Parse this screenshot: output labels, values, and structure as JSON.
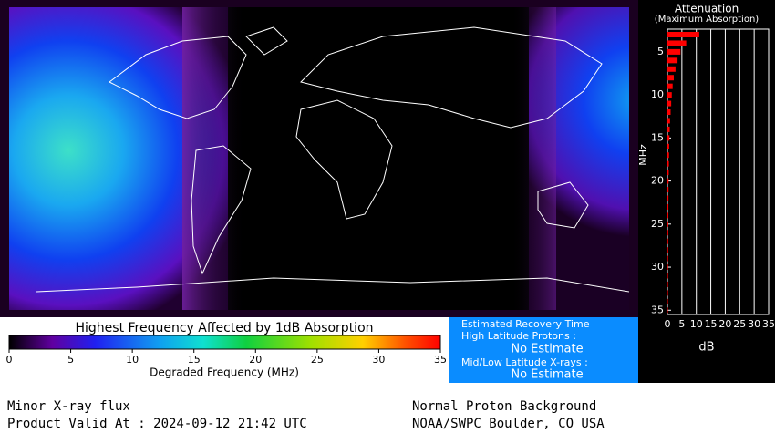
{
  "chart_data": {
    "type": "bar",
    "orientation": "horizontal",
    "title": "Attenuation",
    "subtitle": "(Maximum Absorption)",
    "y_label": "MHz",
    "x_label": "dB",
    "y": [
      3,
      4,
      5,
      6,
      7,
      8,
      9,
      10,
      11,
      12,
      13,
      14,
      15,
      16,
      17,
      18,
      19,
      20,
      21,
      22,
      23,
      24,
      25,
      26,
      27,
      28,
      29,
      30,
      31,
      32,
      33,
      34,
      35
    ],
    "values": [
      11,
      6.5,
      4.5,
      3.5,
      2.8,
      2.2,
      1.8,
      1.5,
      1.3,
      1.1,
      0.9,
      0.8,
      0.7,
      0.6,
      0.55,
      0.5,
      0.45,
      0.4,
      0.38,
      0.35,
      0.33,
      0.3,
      0.28,
      0.26,
      0.25,
      0.24,
      0.22,
      0.21,
      0.2,
      0.19,
      0.18,
      0.17,
      0.16
    ],
    "color": "#ff0000",
    "ylim": [
      3,
      35.5
    ],
    "yticks": [
      5,
      10,
      15,
      20,
      25,
      30,
      35
    ],
    "xlim": [
      0,
      35
    ],
    "xticks": [
      0,
      5,
      10,
      15,
      20,
      25,
      30,
      35
    ],
    "grid": true
  },
  "map": {
    "colorbar": {
      "title": "Highest Frequency Affected by 1dB Absorption",
      "label": "Degraded Frequency (MHz)",
      "lim": [
        0,
        35
      ],
      "ticks": [
        0,
        5,
        10,
        15,
        20,
        25,
        30,
        35
      ]
    }
  },
  "recovery": {
    "title": "Estimated Recovery Time",
    "high_label": "High Latitude Protons :",
    "high_value": "No Estimate",
    "mid_label": "Mid/Low Latitude X-rays :",
    "mid_value": "No Estimate"
  },
  "footer": {
    "xray": "Minor X-ray flux",
    "valid": "Product Valid At : 2024-09-12 21:42 UTC",
    "proton": "Normal Proton Background",
    "source": "NOAA/SWPC Boulder, CO USA"
  }
}
